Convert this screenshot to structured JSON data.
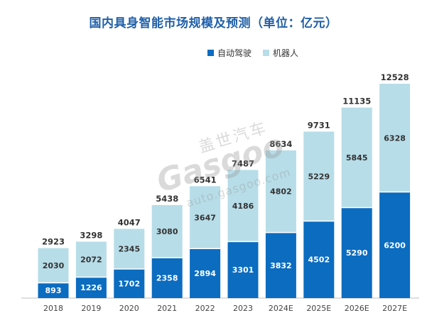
{
  "chart_data": {
    "type": "bar",
    "stacked": true,
    "title": "国内具身智能市场规模及预测（单位：亿元）",
    "categories": [
      "2018",
      "2019",
      "2020",
      "2021",
      "2022",
      "2023",
      "2024E",
      "2025E",
      "2026E",
      "2027E"
    ],
    "series": [
      {
        "name": "自动驾驶",
        "color": "#0b6cc0",
        "values": [
          893,
          1226,
          1702,
          2358,
          2894,
          3301,
          3832,
          4502,
          5290,
          6200
        ]
      },
      {
        "name": "机器人",
        "color": "#b7dde8",
        "values": [
          2030,
          2072,
          2345,
          3080,
          3647,
          4186,
          4802,
          5229,
          5845,
          6328
        ]
      }
    ],
    "totals": [
      2923,
      3298,
      4047,
      5438,
      6541,
      7487,
      8634,
      9731,
      11135,
      12528
    ],
    "ylim": [
      0,
      12528
    ],
    "legend_position": "top",
    "grid": false
  },
  "watermark": {
    "cn": "盖世汽车",
    "brand": "Gasgoo",
    "url": "auto.gasgoo.com"
  }
}
